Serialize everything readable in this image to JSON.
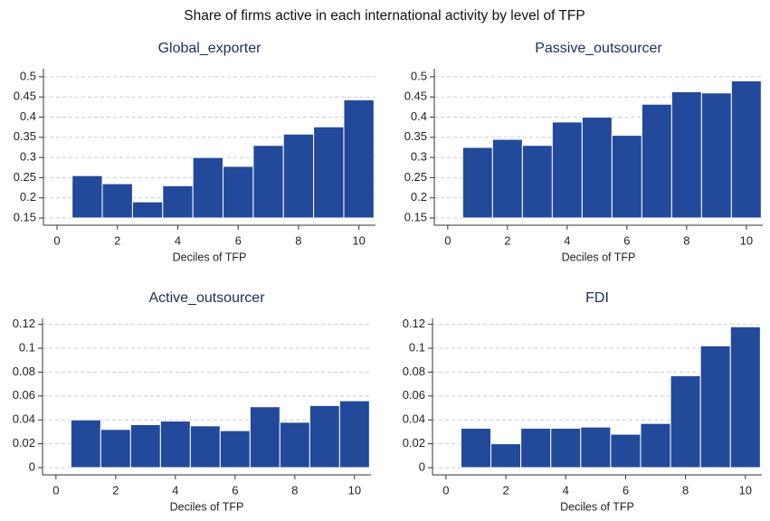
{
  "title": "Share of firms active in each international activity by level of TFP",
  "chart_data": [
    {
      "type": "histogram",
      "title": "Global_exporter",
      "xlabel": "Deciles of TFP",
      "color": "#23499a",
      "bins": [
        0.5,
        1.5,
        2.5,
        3.5,
        4.5,
        5.5,
        6.5,
        7.5,
        8.5,
        9.5,
        10.5
      ],
      "values": [
        0.255,
        0.235,
        0.19,
        0.23,
        0.3,
        0.278,
        0.33,
        0.358,
        0.376,
        0.443
      ],
      "xlim": [
        -0.45,
        10.55
      ],
      "xticks": [
        0,
        2,
        4,
        6,
        8,
        10
      ],
      "ylim": [
        0.15,
        0.52
      ],
      "yticks": [
        0.15,
        0.2,
        0.25,
        0.3,
        0.35,
        0.4,
        0.45,
        0.5
      ],
      "grid": true
    },
    {
      "type": "histogram",
      "title": "Passive_outsourcer",
      "xlabel": "Deciles of TFP",
      "color": "#23499a",
      "bins": [
        0.5,
        1.5,
        2.5,
        3.5,
        4.5,
        5.5,
        6.5,
        7.5,
        8.5,
        9.5,
        10.5
      ],
      "values": [
        0.325,
        0.345,
        0.33,
        0.388,
        0.4,
        0.355,
        0.432,
        0.463,
        0.46,
        0.49
      ],
      "xlim": [
        -0.45,
        10.55
      ],
      "xticks": [
        0,
        2,
        4,
        6,
        8,
        10
      ],
      "ylim": [
        0.15,
        0.52
      ],
      "yticks": [
        0.15,
        0.2,
        0.25,
        0.3,
        0.35,
        0.4,
        0.45,
        0.5
      ],
      "grid": true
    },
    {
      "type": "histogram",
      "title": "Active_outsourcer",
      "xlabel": "Deciles of TFP",
      "color": "#23499a",
      "bins": [
        0.5,
        1.5,
        2.5,
        3.5,
        4.5,
        5.5,
        6.5,
        7.5,
        8.5,
        9.5,
        10.5
      ],
      "values": [
        0.04,
        0.032,
        0.036,
        0.039,
        0.035,
        0.031,
        0.051,
        0.038,
        0.052,
        0.056
      ],
      "xlim": [
        -0.45,
        10.55
      ],
      "xticks": [
        0,
        2,
        4,
        6,
        8,
        10
      ],
      "ylim": [
        0,
        0.125
      ],
      "yticks": [
        0,
        0.02,
        0.04,
        0.06,
        0.08,
        0.1,
        0.12
      ],
      "grid": true
    },
    {
      "type": "histogram",
      "title": "FDI",
      "xlabel": "Deciles of TFP",
      "color": "#23499a",
      "bins": [
        0.5,
        1.5,
        2.5,
        3.5,
        4.5,
        5.5,
        6.5,
        7.5,
        8.5,
        9.5,
        10.5
      ],
      "values": [
        0.033,
        0.02,
        0.033,
        0.033,
        0.034,
        0.028,
        0.037,
        0.077,
        0.102,
        0.118
      ],
      "xlim": [
        -0.45,
        10.55
      ],
      "xticks": [
        0,
        2,
        4,
        6,
        8,
        10
      ],
      "ylim": [
        0,
        0.125
      ],
      "yticks": [
        0,
        0.02,
        0.04,
        0.06,
        0.08,
        0.1,
        0.12
      ],
      "grid": true
    }
  ]
}
